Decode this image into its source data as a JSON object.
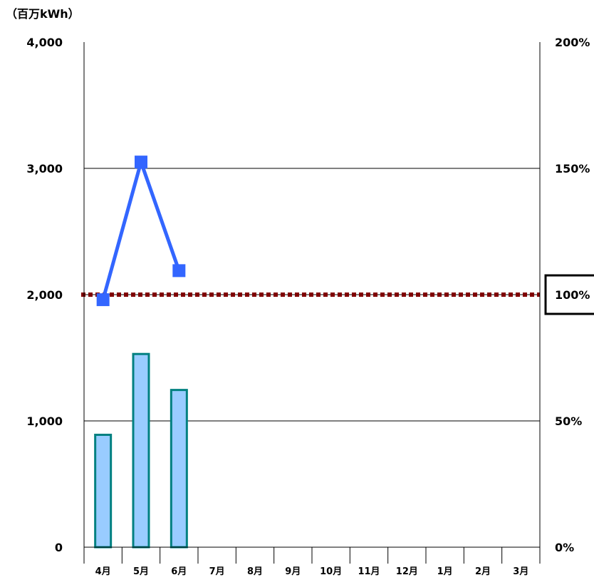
{
  "chart_data": {
    "type": "bar",
    "unit_label": "（百万kWh）",
    "categories": [
      "4月",
      "5月",
      "6月",
      "7月",
      "8月",
      "9月",
      "10月",
      "11月",
      "12月",
      "1月",
      "2月",
      "3月"
    ],
    "series": [
      {
        "type": "bar",
        "axis": "left",
        "values": [
          890,
          1530,
          1245,
          null,
          null,
          null,
          null,
          null,
          null,
          null,
          null,
          null
        ]
      },
      {
        "type": "line",
        "axis": "right",
        "values": [
          98,
          152.5,
          109.5,
          null,
          null,
          null,
          null,
          null,
          null,
          null,
          null,
          null
        ]
      }
    ],
    "reference_line": {
      "axis": "right",
      "value": 100
    },
    "ylim_left": [
      0,
      4000
    ],
    "yticks_left": [
      "0",
      "1,000",
      "2,000",
      "3,000",
      "4,000"
    ],
    "ylim_right": [
      0,
      200
    ],
    "yticks_right": [
      "0%",
      "50%",
      "100%",
      "150%",
      "200%"
    ],
    "highlighted_right_tick": "100%",
    "grid": true,
    "colors": {
      "bar_fill": "#99ccff",
      "bar_edge": "#008080",
      "line": "#3366ff",
      "reference_line": "#800000"
    }
  }
}
